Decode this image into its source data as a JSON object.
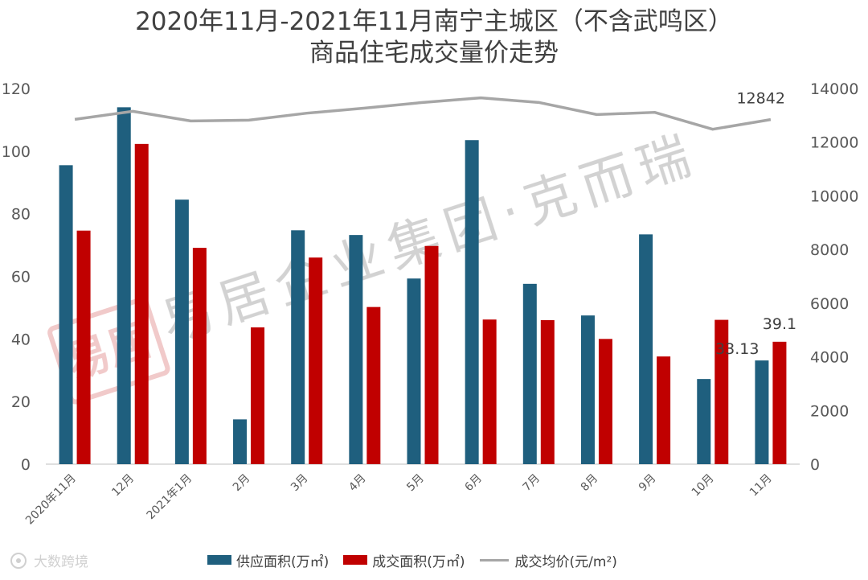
{
  "title": {
    "line1": "2020年11月-2021年11月南宁主城区（不含武鸣区）",
    "line2": "商品住宅成交量价走势"
  },
  "watermark": {
    "stamp_text": "易居",
    "main_text": "易居企业集团·克而瑞",
    "color": "#e8a0a0"
  },
  "brand": {
    "name": "大数跨境"
  },
  "colors": {
    "supply": "#1f5f7e",
    "deal": "#c00000",
    "price": "#a6a6a6",
    "axis": "#595959"
  },
  "chart_data": {
    "type": "bar",
    "categories": [
      "2020年11月",
      "12月",
      "2021年1月",
      "2月",
      "3月",
      "4月",
      "5月",
      "6月",
      "7月",
      "8月",
      "9月",
      "10月",
      "11月"
    ],
    "series": [
      {
        "name": "供应面积(万㎡)",
        "axis": "left",
        "type": "bar",
        "values": [
          95.5,
          114,
          84.5,
          14.3,
          74.7,
          73.2,
          59.3,
          103.5,
          57.6,
          47.5,
          73.4,
          27.2,
          33.13
        ]
      },
      {
        "name": "成交面积(万㎡)",
        "axis": "left",
        "type": "bar",
        "values": [
          74.6,
          102.3,
          69.1,
          43.7,
          66.0,
          50.2,
          69.7,
          46.2,
          46.0,
          40.0,
          34.4,
          46.1,
          39.1
        ]
      },
      {
        "name": "成交均价(元/m²)",
        "axis": "right",
        "type": "line",
        "values": [
          12850,
          13150,
          12790,
          12820,
          13080,
          13270,
          13480,
          13650,
          13480,
          13030,
          13110,
          12480,
          12842
        ]
      }
    ],
    "data_labels": {
      "supply_last": "33.13",
      "deal_last": "39.1",
      "price_last": "12842"
    },
    "ylim_left": [
      0,
      120
    ],
    "yticks_left": [
      "0",
      "20",
      "40",
      "60",
      "80",
      "100",
      "120"
    ],
    "ylim_right": [
      0,
      14000
    ],
    "yticks_right": [
      "0",
      "2000",
      "4000",
      "6000",
      "8000",
      "10000",
      "12000",
      "14000"
    ],
    "legend_position": "bottom",
    "grid": false
  }
}
